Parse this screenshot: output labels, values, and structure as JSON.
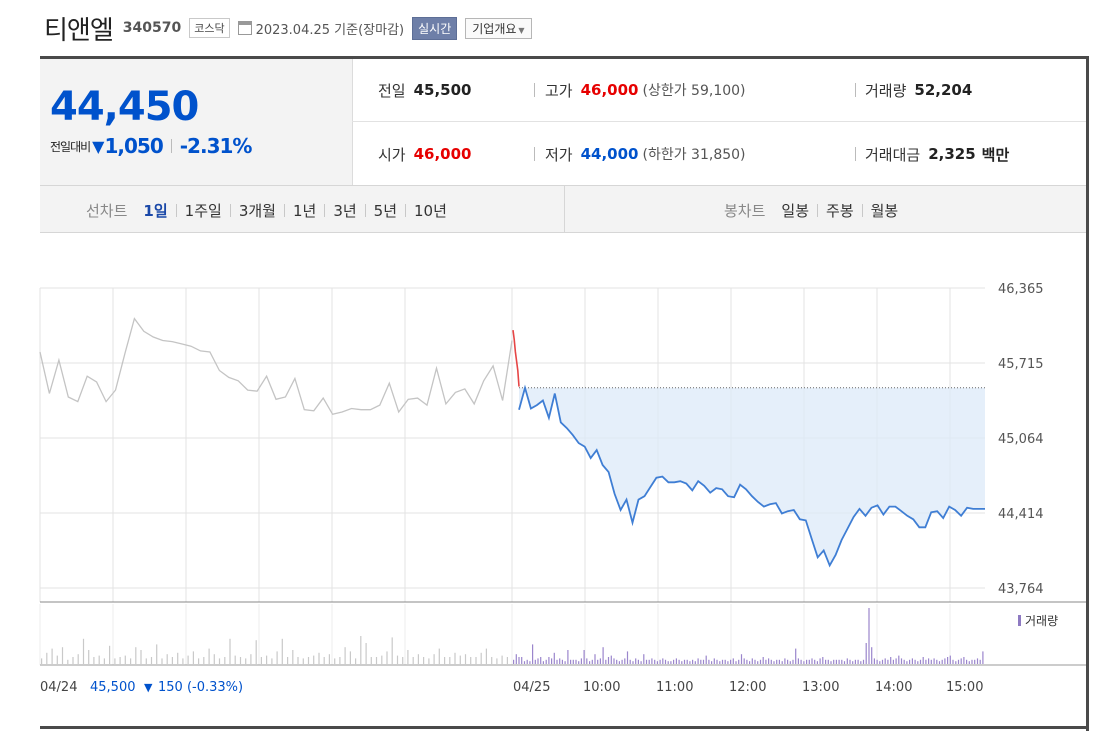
{
  "header": {
    "company_name": "티앤엘",
    "code": "340570",
    "market": "코스닥",
    "date_text": "2023.04.25 기준(장마감)",
    "realtime_label": "실시간",
    "overview_label": "기업개요"
  },
  "price": {
    "current": "44,450",
    "change_label": "전일대비",
    "change_value": "1,050",
    "change_pct": "-2.31%",
    "colors": {
      "down": "#0052cc",
      "up": "#e60000"
    }
  },
  "info": {
    "prev_label": "전일",
    "prev_value": "45,500",
    "high_label": "고가",
    "high_value": "46,000",
    "upper_limit_text": "(상한가 59,100)",
    "volume_label": "거래량",
    "volume_value": "52,204",
    "open_label": "시가",
    "open_value": "46,000",
    "low_label": "저가",
    "low_value": "44,000",
    "lower_limit_text": "(하한가 31,850)",
    "amount_label": "거래대금",
    "amount_value": "2,325",
    "amount_unit": "백만"
  },
  "periods": {
    "line_title": "선차트",
    "line_items": [
      "1일",
      "1주일",
      "3개월",
      "1년",
      "3년",
      "5년",
      "10년"
    ],
    "selected": "1일",
    "candle_title": "봉차트",
    "candle_items": [
      "일봉",
      "주봉",
      "월봉"
    ]
  },
  "chart_data": {
    "type": "line",
    "ylim": [
      43764,
      46365
    ],
    "y_ticks": [
      "46,365",
      "45,715",
      "45,064",
      "44,414",
      "43,764"
    ],
    "y_tick_values": [
      46365,
      45715,
      45064,
      44414,
      43764
    ],
    "x_ticks": [
      "04/24",
      "04/25",
      "10:00",
      "11:00",
      "12:00",
      "13:00",
      "14:00",
      "15:00"
    ],
    "prev_close": 45500,
    "series": [
      {
        "role": "prev_day",
        "x": [
          0.0,
          0.02,
          0.04,
          0.06,
          0.08,
          0.1,
          0.12,
          0.14,
          0.16,
          0.18,
          0.2,
          0.22,
          0.24,
          0.26,
          0.28,
          0.3,
          0.32,
          0.34,
          0.36,
          0.38,
          0.4,
          0.42,
          0.44,
          0.46,
          0.48,
          0.5,
          0.52,
          0.54,
          0.56,
          0.58,
          0.6,
          0.62,
          0.64,
          0.66,
          0.68,
          0.7,
          0.72,
          0.74,
          0.76,
          0.78,
          0.8,
          0.82,
          0.84,
          0.86,
          0.88,
          0.9,
          0.92,
          0.94,
          0.96,
          0.98,
          1.0
        ],
        "y": [
          45810,
          45450,
          45740,
          45420,
          45380,
          45600,
          45550,
          45380,
          45480,
          45800,
          46100,
          45990,
          45940,
          45910,
          45900,
          45880,
          45860,
          45820,
          45810,
          45650,
          45590,
          45560,
          45480,
          45470,
          45600,
          45400,
          45420,
          45580,
          45310,
          45300,
          45410,
          45270,
          45290,
          45320,
          45310,
          45310,
          45350,
          45540,
          45290,
          45400,
          45410,
          45350,
          45670,
          45360,
          45460,
          45490,
          45360,
          45560,
          45690,
          45390,
          45910
        ]
      },
      {
        "role": "today_open",
        "x": [
          0.0,
          0.2,
          0.4,
          0.6,
          0.8,
          1.0
        ],
        "y": [
          46000,
          45920,
          45810,
          45730,
          45650,
          45510
        ]
      },
      {
        "role": "today",
        "x": [
          0,
          5,
          10,
          15,
          20,
          25,
          30,
          35,
          40,
          45,
          50,
          55,
          60,
          65,
          70,
          75,
          80,
          85,
          90,
          95,
          100,
          105,
          110,
          115,
          120,
          125,
          130,
          135,
          140,
          145,
          150,
          155,
          160,
          165,
          170,
          175,
          180,
          185,
          190,
          195,
          200,
          205,
          210,
          215,
          220,
          225,
          230,
          235,
          240,
          245,
          250,
          255,
          260,
          265,
          270,
          275,
          280,
          285,
          290,
          295,
          300,
          305,
          310,
          315,
          320,
          325,
          330,
          335,
          340,
          345,
          350,
          355,
          360,
          365,
          370,
          375,
          380,
          390
        ],
        "y": [
          45310,
          45500,
          45320,
          45350,
          45390,
          45240,
          45450,
          45200,
          45150,
          45090,
          45020,
          44990,
          44890,
          44960,
          44830,
          44770,
          44580,
          44440,
          44530,
          44330,
          44530,
          44560,
          44640,
          44720,
          44730,
          44680,
          44680,
          44690,
          44670,
          44610,
          44690,
          44650,
          44590,
          44630,
          44620,
          44560,
          44550,
          44660,
          44620,
          44560,
          44510,
          44470,
          44490,
          44500,
          44410,
          44430,
          44440,
          44360,
          44350,
          44190,
          44030,
          44090,
          43960,
          44050,
          44180,
          44280,
          44380,
          44450,
          44390,
          44460,
          44480,
          44400,
          44470,
          44470,
          44430,
          44390,
          44360,
          44290,
          44290,
          44420,
          44430,
          44370,
          44470,
          44440,
          44390,
          44460,
          44450,
          44450
        ]
      }
    ],
    "volume": {
      "legend": "거래량",
      "prev_day": [
        8,
        16,
        22,
        12,
        24,
        6,
        10,
        14,
        36,
        20,
        10,
        12,
        8,
        26,
        8,
        10,
        12,
        8,
        24,
        20,
        8,
        10,
        28,
        8,
        14,
        10,
        16,
        8,
        12,
        18,
        8,
        10,
        22,
        14,
        8,
        10,
        36,
        12,
        10,
        8,
        14,
        34,
        10,
        12,
        8,
        18,
        36,
        10,
        20,
        10,
        8,
        10,
        12,
        16,
        10,
        14,
        8,
        10,
        24,
        18,
        8,
        40,
        30,
        10,
        10,
        12,
        18,
        38,
        12,
        10,
        20,
        10,
        14,
        10,
        8,
        14,
        22,
        10,
        10,
        16,
        12,
        14,
        10,
        10,
        16,
        22,
        10,
        8,
        12,
        10
      ],
      "today": [
        6,
        14,
        10,
        10,
        4,
        6,
        4,
        28,
        6,
        8,
        10,
        4,
        6,
        10,
        8,
        16,
        6,
        8,
        6,
        4,
        20,
        6,
        6,
        6,
        4,
        8,
        20,
        8,
        4,
        6,
        14,
        6,
        8,
        24,
        6,
        10,
        12,
        8,
        6,
        4,
        6,
        8,
        18,
        6,
        4,
        8,
        6,
        4,
        14,
        6,
        6,
        8,
        6,
        4,
        6,
        8,
        6,
        4,
        4,
        6,
        8,
        6,
        4,
        6,
        6,
        4,
        6,
        4,
        8,
        6,
        6,
        12,
        6,
        4,
        8,
        6,
        4,
        6,
        6,
        4,
        6,
        8,
        4,
        6,
        14,
        8,
        6,
        4,
        8,
        6,
        4,
        6,
        10,
        6,
        8,
        6,
        4,
        6,
        6,
        4,
        8,
        6,
        4,
        6,
        22,
        8,
        6,
        4,
        6,
        6,
        8,
        6,
        4,
        8,
        10,
        6,
        6,
        4,
        6,
        6,
        6,
        6,
        4,
        8,
        6,
        4,
        6,
        6,
        4,
        6,
        30,
        80,
        24,
        8,
        6,
        4,
        6,
        8,
        6,
        10,
        6,
        8,
        12,
        8,
        6,
        4,
        6,
        8,
        6,
        4,
        6,
        10,
        6,
        8,
        6,
        8,
        6,
        4,
        6,
        8,
        10,
        12,
        6,
        4,
        6,
        8,
        10,
        6,
        4,
        6,
        6,
        8,
        6,
        18
      ]
    },
    "footer": {
      "date": "04/24",
      "prev_text": "45,500",
      "change_text": "150 (-0.33%)"
    }
  }
}
